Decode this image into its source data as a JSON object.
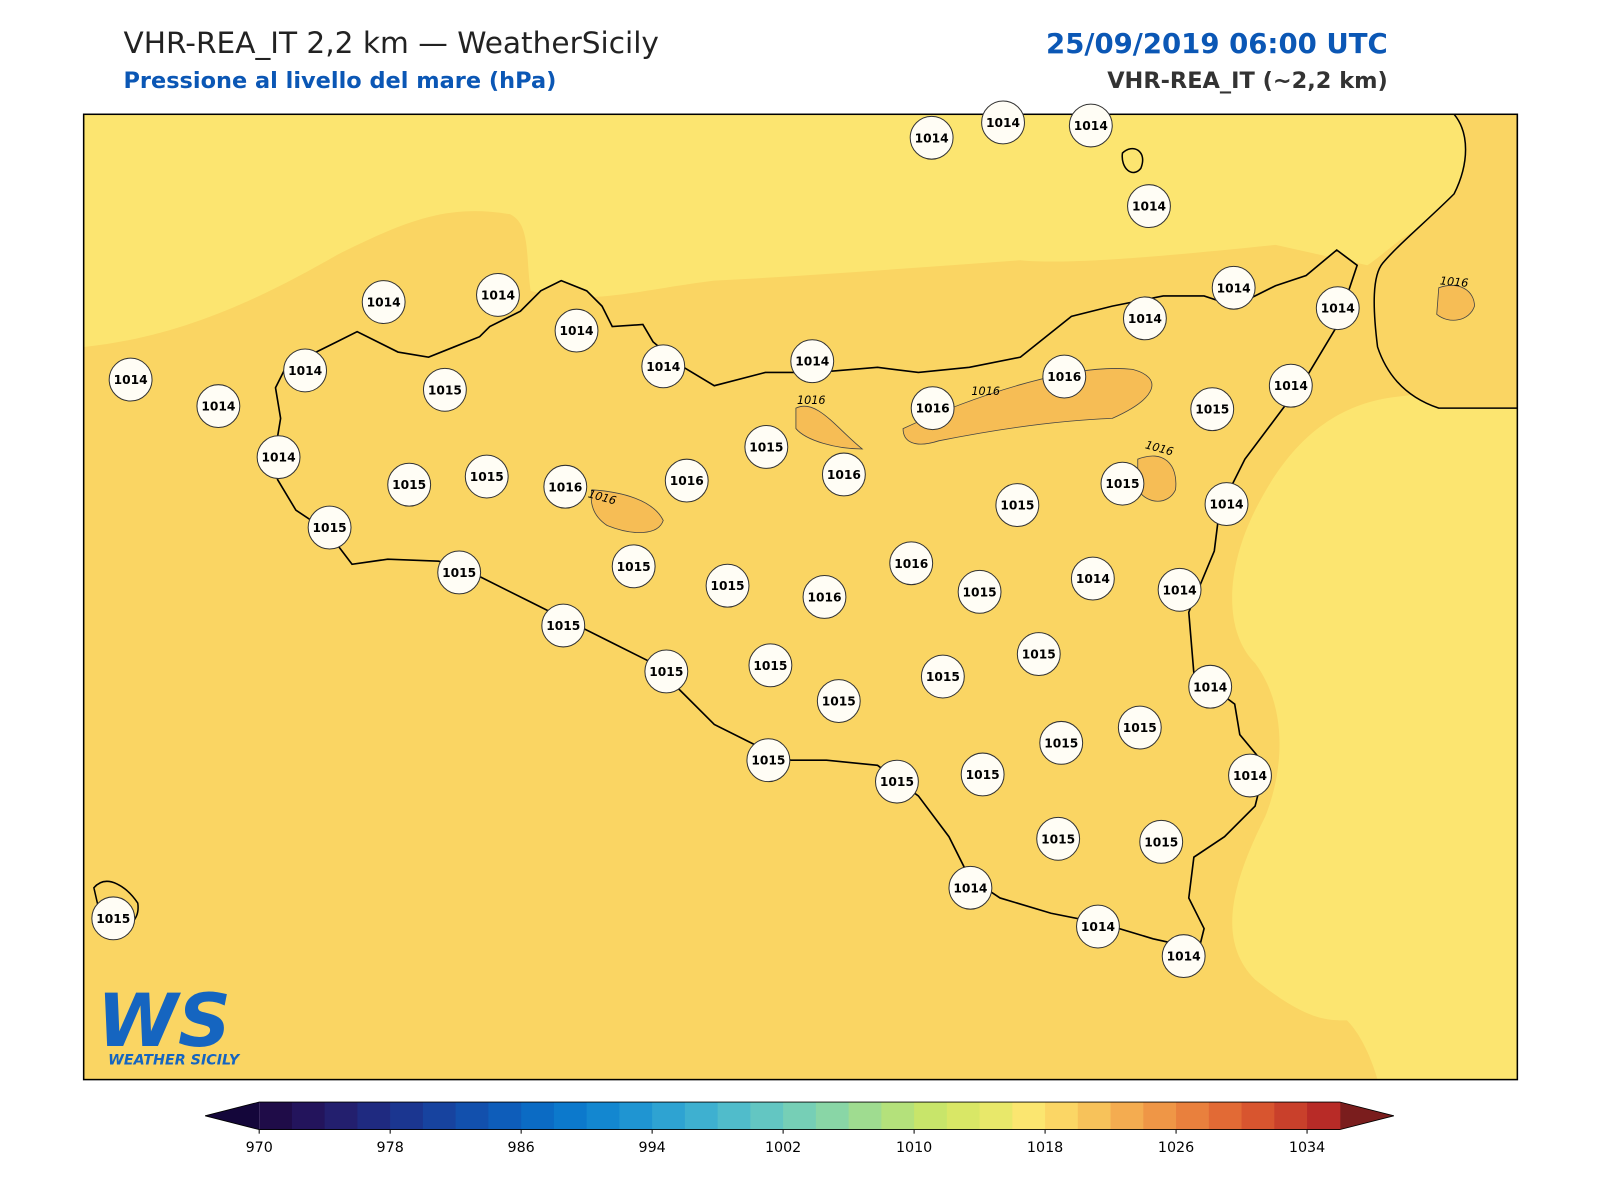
{
  "header": {
    "title": "VHR-REA_IT 2,2 km — WeatherSicily",
    "subtitle": "Pressione al livello del mare (hPa)",
    "datetime": "25/09/2019 06:00 UTC",
    "model": "VHR-REA_IT (~2,2 km)"
  },
  "stations": [
    1014,
    1014,
    1014,
    1014,
    1014,
    1014,
    1014,
    1014,
    1014,
    1014,
    1014,
    1014,
    1014,
    1014,
    1014,
    1015,
    1014,
    1015,
    1015,
    1016,
    1016,
    1015,
    1016,
    1016,
    1016,
    1015,
    1014,
    1015,
    1015,
    1015,
    1014,
    1015,
    1015,
    1015,
    1016,
    1016,
    1015,
    1014,
    1014,
    1015,
    1015,
    1015,
    1015,
    1015,
    1015,
    1014,
    1015,
    1015,
    1015,
    1015,
    1015,
    1014,
    1015,
    1015,
    1014,
    1015,
    1014,
    1014
  ],
  "contour_labels": [
    "1016",
    "1016",
    "1016",
    "1016",
    "1016"
  ],
  "colorbar": {
    "lim": [
      970,
      1036
    ],
    "ticks": [
      970,
      978,
      986,
      994,
      1002,
      1010,
      1018,
      1026,
      1034
    ],
    "colors": [
      "#1f0c48",
      "#23145c",
      "#231f6e",
      "#1f2a80",
      "#1b3690",
      "#17439f",
      "#1250ad",
      "#0e5dba",
      "#0b6bc4",
      "#0c79cc",
      "#1387d0",
      "#1f95d2",
      "#2ea3d2",
      "#3eb0d0",
      "#50bccb",
      "#63c6c2",
      "#76cfb6",
      "#89d6a6",
      "#9fdc90",
      "#b4e17b",
      "#c8e56a",
      "#d9e766",
      "#e8e86a",
      "#fbe670",
      "#fbd665",
      "#f7c25a",
      "#f4ac50",
      "#ef9646",
      "#e9803d",
      "#e26a35",
      "#d8552f",
      "#c9402b",
      "#b82b27"
    ],
    "extend_colors": [
      "#14063a",
      "#7a1d1d"
    ]
  },
  "logo": {
    "mark": "WS",
    "name": "WEATHER SICILY"
  }
}
